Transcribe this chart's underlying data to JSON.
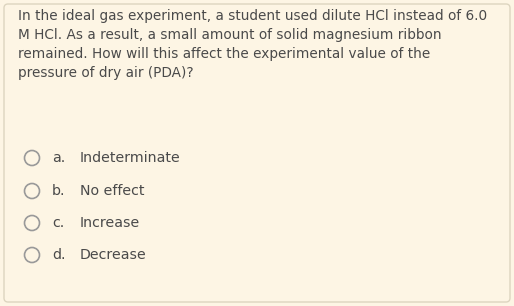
{
  "background_color": "#fdf5e4",
  "border_color": "#ddd5c0",
  "question_lines": [
    "In the ideal gas experiment, a student used dilute HCl instead of 6.0",
    "M HCl. As a result, a small amount of solid magnesium ribbon",
    "remained. How will this affect the experimental value of the",
    "pressure of dry air (PDA)?"
  ],
  "options": [
    {
      "label": "a.",
      "text": "Indeterminate"
    },
    {
      "label": "b.",
      "text": "No effect"
    },
    {
      "label": "c.",
      "text": "Increase"
    },
    {
      "label": "d.",
      "text": "Decrease"
    }
  ],
  "text_color": "#4a4a4a",
  "circle_edge_color": "#999999",
  "font_size_question": 9.8,
  "font_size_options": 10.2,
  "figsize": [
    5.14,
    3.06
  ],
  "dpi": 100
}
